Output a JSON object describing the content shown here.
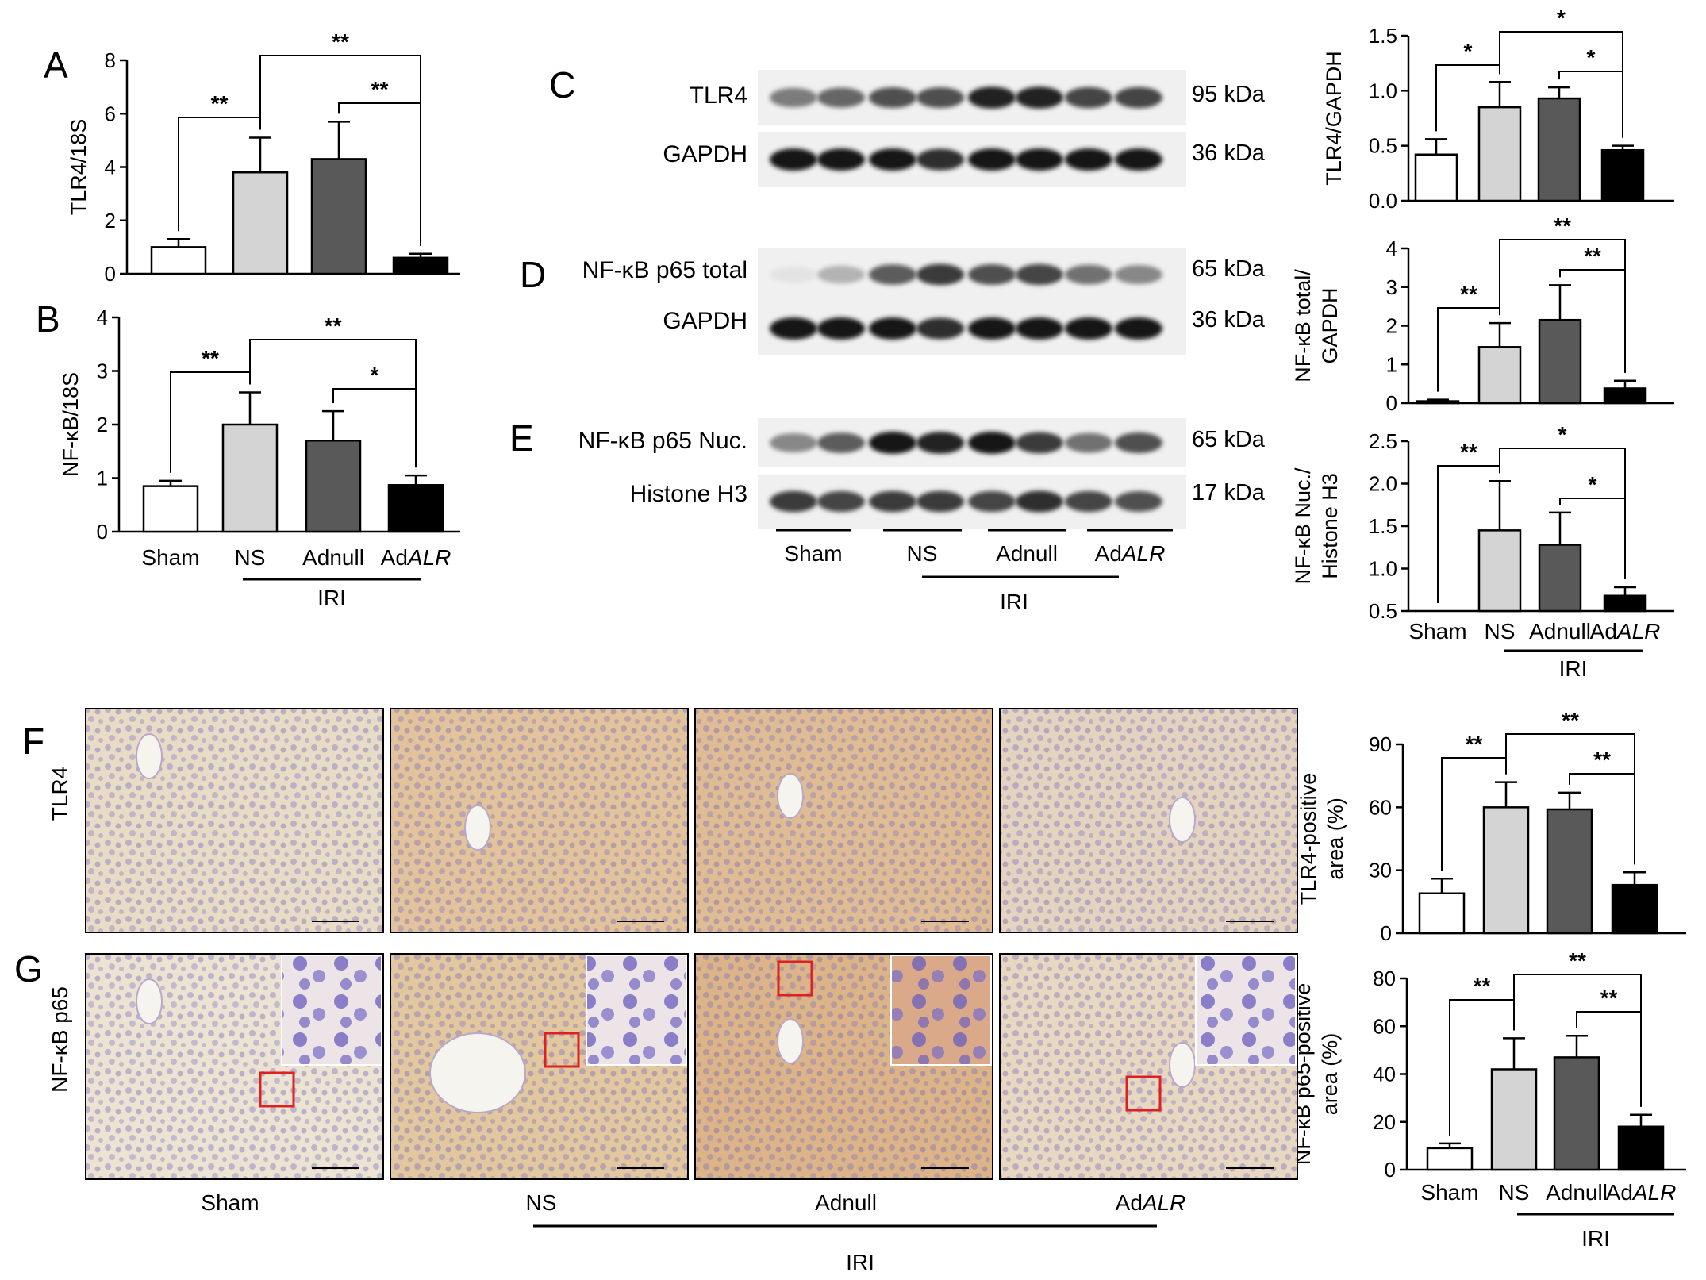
{
  "colors": {
    "Sham": "#ffffff",
    "NS": "#d4d4d4",
    "Adnull": "#595959",
    "AdALR": "#000000",
    "ihc_bg": "#e7d3b8",
    "ihc_brown": "#c58a4a",
    "ihc_nuclei": "#6f67b8",
    "box": "#e02020"
  },
  "groups": [
    {
      "label": "Sham",
      "italic_part": ""
    },
    {
      "label": "NS",
      "italic_part": ""
    },
    {
      "label": "Adnull",
      "italic_part": ""
    },
    {
      "prefix": "Ad",
      "italic_part": "ALR"
    }
  ],
  "iri_label": "IRI",
  "panels": {
    "A": "A",
    "B": "B",
    "C": "C",
    "D": "D",
    "E": "E",
    "F": "F",
    "G": "G"
  },
  "western": {
    "rows": [
      {
        "label": "TLR4",
        "kda": "95 kDa"
      },
      {
        "label": "GAPDH",
        "kda": "36 kDa"
      },
      {
        "label": "NF-κB p65 total",
        "kda": "65 kDa"
      },
      {
        "label": "GAPDH",
        "kda": "36 kDa"
      },
      {
        "label": "NF-κB p65 Nuc.",
        "kda": "65 kDa"
      },
      {
        "label": "Histone H3",
        "kda": "17 kDa"
      }
    ]
  },
  "ihc": {
    "row_labels": [
      "TLR4",
      "NF-κB p65"
    ]
  },
  "chart_data": [
    {
      "id": "A",
      "type": "bar",
      "ylabel": "TLR4/18S",
      "ylim": [
        0,
        8
      ],
      "yticks": [
        "0",
        "2",
        "4",
        "6",
        "8"
      ],
      "categories": [
        "Sham",
        "NS",
        "Adnull",
        "AdALR"
      ],
      "values": [
        1.0,
        3.8,
        4.3,
        0.6
      ],
      "errors": [
        0.3,
        1.3,
        1.4,
        0.15
      ],
      "sig": [
        {
          "from": 0,
          "to": 1,
          "label": "**"
        },
        {
          "from": 1,
          "to": 3,
          "label": "**"
        },
        {
          "from": 2,
          "to": 3,
          "label": "**"
        }
      ]
    },
    {
      "id": "B",
      "type": "bar",
      "ylabel": "NF-κB/18S",
      "ylim": [
        0,
        4
      ],
      "yticks": [
        "0",
        "1",
        "2",
        "3",
        "4"
      ],
      "categories": [
        "Sham",
        "NS",
        "Adnull",
        "AdALR"
      ],
      "values": [
        0.85,
        2.0,
        1.7,
        0.87
      ],
      "errors": [
        0.1,
        0.6,
        0.55,
        0.18
      ],
      "sig": [
        {
          "from": 0,
          "to": 1,
          "label": "**"
        },
        {
          "from": 1,
          "to": 3,
          "label": "**"
        },
        {
          "from": 2,
          "to": 3,
          "label": "*"
        }
      ]
    },
    {
      "id": "C",
      "type": "bar",
      "ylabel": "TLR4/GAPDH",
      "ylim": [
        0,
        1.5
      ],
      "yticks": [
        "0.0",
        "0.5",
        "1.0",
        "1.5"
      ],
      "categories": [
        "Sham",
        "NS",
        "Adnull",
        "AdALR"
      ],
      "values": [
        0.42,
        0.85,
        0.93,
        0.46
      ],
      "errors": [
        0.14,
        0.23,
        0.1,
        0.04
      ],
      "sig": [
        {
          "from": 0,
          "to": 1,
          "label": "*"
        },
        {
          "from": 1,
          "to": 3,
          "label": "*"
        },
        {
          "from": 2,
          "to": 3,
          "label": "*"
        }
      ]
    },
    {
      "id": "D",
      "type": "bar",
      "ylabel": [
        "NF-κB total/",
        "GAPDH"
      ],
      "ylim": [
        0,
        4
      ],
      "yticks": [
        "0",
        "1",
        "2",
        "3",
        "4"
      ],
      "categories": [
        "Sham",
        "NS",
        "Adnull",
        "AdALR"
      ],
      "values": [
        0.05,
        1.45,
        2.15,
        0.38
      ],
      "errors": [
        0.04,
        0.62,
        0.9,
        0.2
      ],
      "sig": [
        {
          "from": 0,
          "to": 1,
          "label": "**"
        },
        {
          "from": 1,
          "to": 3,
          "label": "**"
        },
        {
          "from": 2,
          "to": 3,
          "label": "**"
        }
      ]
    },
    {
      "id": "E",
      "type": "bar",
      "ylabel": [
        "NF-κB Nuc./",
        "Histone H3"
      ],
      "ylim": [
        0.5,
        2.5
      ],
      "yticks": [
        "0.5",
        "1.0",
        "1.5",
        "2.0",
        "2.5"
      ],
      "categories": [
        "Sham",
        "NS",
        "Adnull",
        "AdALR"
      ],
      "values": [
        0.5,
        1.45,
        1.28,
        0.68
      ],
      "errors": [
        0.0,
        0.58,
        0.38,
        0.1
      ],
      "sig": [
        {
          "from": 0,
          "to": 1,
          "label": "**"
        },
        {
          "from": 1,
          "to": 3,
          "label": "*"
        },
        {
          "from": 2,
          "to": 3,
          "label": "*"
        }
      ]
    },
    {
      "id": "F",
      "type": "bar",
      "ylabel": [
        "TLR4-positive",
        "area (%)"
      ],
      "ylim": [
        0,
        90
      ],
      "yticks": [
        "0",
        "30",
        "60",
        "90"
      ],
      "categories": [
        "Sham",
        "NS",
        "Adnull",
        "AdALR"
      ],
      "values": [
        19,
        60,
        59,
        23
      ],
      "errors": [
        7,
        12,
        8,
        6
      ],
      "sig": [
        {
          "from": 0,
          "to": 1,
          "label": "**"
        },
        {
          "from": 1,
          "to": 3,
          "label": "**"
        },
        {
          "from": 2,
          "to": 3,
          "label": "**"
        }
      ]
    },
    {
      "id": "G",
      "type": "bar",
      "ylabel": [
        "NF-κB p65-positive",
        "area (%)"
      ],
      "ylim": [
        0,
        80
      ],
      "yticks": [
        "0",
        "20",
        "40",
        "60",
        "80"
      ],
      "categories": [
        "Sham",
        "NS",
        "Adnull",
        "AdALR"
      ],
      "values": [
        9,
        42,
        47,
        18
      ],
      "errors": [
        2,
        13,
        9,
        5
      ],
      "sig": [
        {
          "from": 0,
          "to": 1,
          "label": "**"
        },
        {
          "from": 1,
          "to": 3,
          "label": "**"
        },
        {
          "from": 2,
          "to": 3,
          "label": "**"
        }
      ]
    }
  ]
}
